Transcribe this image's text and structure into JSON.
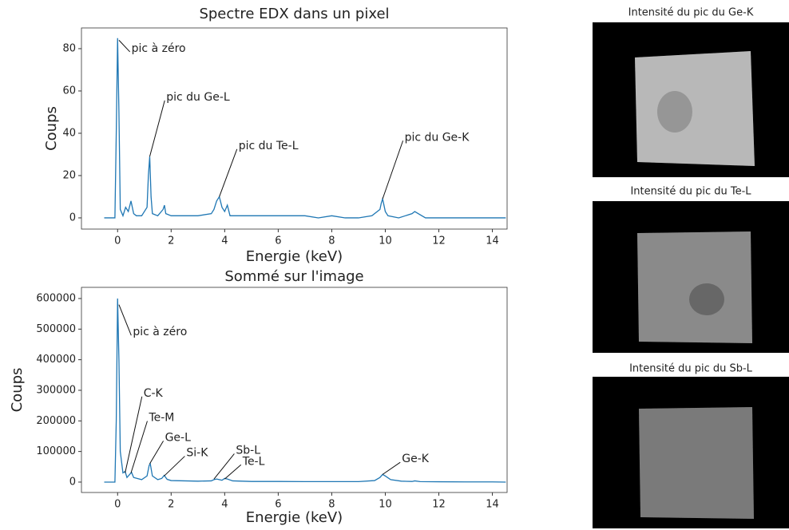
{
  "chart_data": [
    {
      "type": "line",
      "title": "Spectre EDX dans un pixel",
      "x_label": "Energie (keV)",
      "y_label": "Coups",
      "color": "#1f77b4",
      "x": [
        -0.5,
        -0.1,
        -0.05,
        0,
        0.05,
        0.1,
        0.2,
        0.3,
        0.4,
        0.5,
        0.6,
        0.7,
        0.9,
        1.1,
        1.15,
        1.2,
        1.25,
        1.3,
        1.5,
        1.7,
        1.75,
        1.8,
        2.0,
        2.5,
        3.0,
        3.5,
        3.6,
        3.7,
        3.8,
        3.9,
        4.0,
        4.1,
        4.2,
        4.5,
        5.0,
        5.5,
        6.0,
        6.5,
        7.0,
        7.5,
        8.0,
        8.5,
        9.0,
        9.5,
        9.8,
        9.85,
        9.9,
        9.95,
        10.0,
        10.1,
        10.5,
        11.0,
        11.1,
        11.5,
        12,
        12.5,
        13,
        13.5,
        14,
        14.5
      ],
      "values": [
        0,
        0,
        40,
        85,
        50,
        4,
        1,
        5,
        3,
        8,
        2,
        1,
        1,
        5,
        20,
        29,
        10,
        2,
        1,
        4,
        6,
        2,
        1,
        1,
        1,
        2,
        4,
        8,
        10,
        5,
        3,
        6,
        1,
        1,
        1,
        1,
        1,
        1,
        1,
        0,
        1,
        0,
        0,
        1,
        4,
        7,
        9,
        6,
        3,
        1,
        0,
        2,
        3,
        0,
        0,
        0,
        0,
        0,
        0,
        0
      ],
      "xlim": [
        -1.35,
        14.55
      ],
      "xticks": [
        0,
        2,
        4,
        6,
        8,
        10,
        12,
        14
      ],
      "ylim": [
        -5.3,
        89.8
      ],
      "yticks": [
        0,
        20,
        40,
        60,
        80
      ],
      "annotations": [
        {
          "text": "pic à zéro",
          "x": 0.05,
          "y": 84
        },
        {
          "text": "pic du Ge-L",
          "x": 1.2,
          "y": 29
        },
        {
          "text": "pic du Te-L",
          "x": 3.8,
          "y": 10
        },
        {
          "text": "pic du Ge-K",
          "x": 9.9,
          "y": 9
        }
      ]
    },
    {
      "type": "line",
      "title": "Sommé sur l'image",
      "x_label": "Energie (keV)",
      "y_label": "Coups",
      "color": "#1f77b4",
      "x": [
        -0.5,
        -0.1,
        -0.05,
        0,
        0.05,
        0.1,
        0.2,
        0.28,
        0.35,
        0.45,
        0.52,
        0.6,
        0.9,
        1.1,
        1.18,
        1.22,
        1.3,
        1.5,
        1.65,
        1.74,
        1.85,
        2.0,
        3.0,
        3.5,
        3.6,
        3.7,
        3.9,
        4.0,
        4.1,
        4.3,
        5.0,
        6,
        7,
        8,
        9,
        9.6,
        9.8,
        9.9,
        10.0,
        10.2,
        10.6,
        11.0,
        11.1,
        11.3,
        12,
        13,
        14,
        14.5
      ],
      "values": [
        0,
        0,
        200000,
        600000,
        400000,
        100000,
        30000,
        35000,
        15000,
        25000,
        32000,
        15000,
        8000,
        20000,
        55000,
        60000,
        20000,
        8000,
        12000,
        22000,
        9000,
        5000,
        3000,
        4000,
        8000,
        10000,
        6000,
        12000,
        10000,
        4000,
        2000,
        2000,
        1500,
        1500,
        1500,
        5000,
        15000,
        25000,
        20000,
        8000,
        3000,
        2000,
        4000,
        1500,
        1000,
        500,
        500,
        0
      ],
      "xlim": [
        -1.35,
        14.55
      ],
      "xticks": [
        0,
        2,
        4,
        6,
        8,
        10,
        12,
        14
      ],
      "ylim": [
        -34000,
        636500
      ],
      "yticks": [
        0,
        100000,
        200000,
        300000,
        400000,
        500000,
        600000
      ],
      "annotations": [
        {
          "text": "pic à zéro",
          "x": 0.05,
          "y": 580000
        },
        {
          "text": "C-K",
          "x": 0.28,
          "y": 30000
        },
        {
          "text": "Te-M",
          "x": 0.5,
          "y": 30000
        },
        {
          "text": "Ge-L",
          "x": 1.2,
          "y": 60000
        },
        {
          "text": "Si-K",
          "x": 1.74,
          "y": 20000
        },
        {
          "text": "Sb-L",
          "x": 3.6,
          "y": 10000
        },
        {
          "text": "Te-L",
          "x": 4.0,
          "y": 10000
        },
        {
          "text": "Ge-K",
          "x": 9.9,
          "y": 25000
        }
      ]
    }
  ],
  "panels": [
    {
      "title": "Intensité du pic du Ge-K"
    },
    {
      "title": "Intensité du pic du Te-L"
    },
    {
      "title": "Intensité du pic du Sb-L"
    }
  ]
}
